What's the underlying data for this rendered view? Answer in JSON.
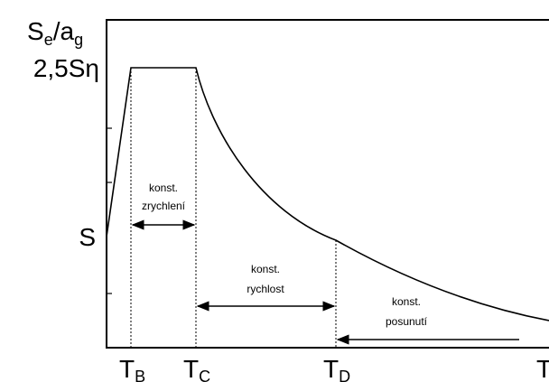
{
  "y_axis_label": {
    "base": "S",
    "sub1": "e",
    "mid": "/a",
    "sub2": "g"
  },
  "y_labels": [
    "2,5Sη",
    "S"
  ],
  "x_labels": [
    {
      "base": "T",
      "sub": "B"
    },
    {
      "base": "T",
      "sub": "C"
    },
    {
      "base": "T",
      "sub": "D"
    },
    {
      "base": "T"
    }
  ],
  "regions": [
    {
      "line1": "konst.",
      "line2": "zrychlení"
    },
    {
      "line1": "konst.",
      "line2": "rychlost"
    },
    {
      "line1": "konst.",
      "line2": "posunutí"
    }
  ]
}
